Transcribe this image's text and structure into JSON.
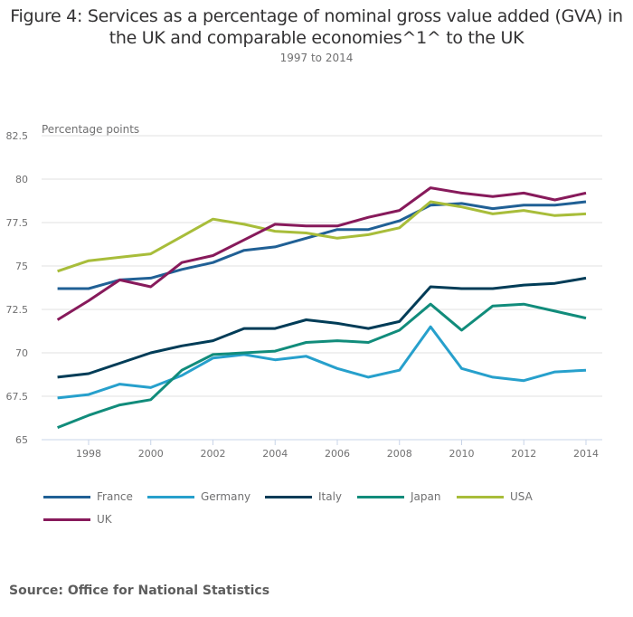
{
  "chart_data": {
    "type": "line",
    "title": "Figure 4: Services as a percentage of nominal gross value added (GVA) in the UK and comparable economies^1^ to the UK",
    "subtitle": "1997 to 2014",
    "xlabel": "",
    "ylabel": "Percentage points",
    "x": [
      1997,
      1998,
      1999,
      2000,
      2001,
      2002,
      2003,
      2004,
      2005,
      2006,
      2007,
      2008,
      2009,
      2010,
      2011,
      2012,
      2013,
      2014
    ],
    "xticks": [
      1998,
      2000,
      2002,
      2004,
      2006,
      2008,
      2010,
      2012,
      2014
    ],
    "xtick_labels": [
      "1998",
      "2000",
      "2002",
      "2004",
      "2006",
      "2008",
      "2010",
      "2012",
      "2014"
    ],
    "xlim": [
      1997,
      2014
    ],
    "ylim": [
      65,
      82.5
    ],
    "yticks": [
      65,
      67.5,
      70,
      72.5,
      75,
      77.5,
      80,
      82.5
    ],
    "ytick_labels": [
      "65",
      "67.5",
      "70",
      "72.5",
      "75",
      "77.5",
      "80",
      "82.5"
    ],
    "grid": true,
    "legend_position": "bottom-left",
    "series": [
      {
        "name": "France",
        "color": "#206095",
        "values": [
          73.7,
          73.7,
          74.2,
          74.3,
          74.8,
          75.2,
          75.9,
          76.1,
          76.6,
          77.1,
          77.1,
          77.6,
          78.5,
          78.6,
          78.3,
          78.5,
          78.5,
          78.7
        ]
      },
      {
        "name": "Germany",
        "color": "#27a0cc",
        "values": [
          67.4,
          67.6,
          68.2,
          68.0,
          68.7,
          69.7,
          69.9,
          69.6,
          69.8,
          69.1,
          68.6,
          69.0,
          71.5,
          69.1,
          68.6,
          68.4,
          68.9,
          69.0
        ]
      },
      {
        "name": "Italy",
        "color": "#003c57",
        "values": [
          68.6,
          68.8,
          69.4,
          70.0,
          70.4,
          70.7,
          71.4,
          71.4,
          71.9,
          71.7,
          71.4,
          71.8,
          73.8,
          73.7,
          73.7,
          73.9,
          74.0,
          74.3
        ]
      },
      {
        "name": "Japan",
        "color": "#118c7b",
        "values": [
          65.7,
          66.4,
          67.0,
          67.3,
          69.0,
          69.9,
          70.0,
          70.1,
          70.6,
          70.7,
          70.6,
          71.3,
          72.8,
          71.3,
          72.7,
          72.8,
          72.4,
          72.0
        ]
      },
      {
        "name": "USA",
        "color": "#a8bd3a",
        "values": [
          74.7,
          75.3,
          75.5,
          75.7,
          76.7,
          77.7,
          77.4,
          77.0,
          76.9,
          76.6,
          76.8,
          77.2,
          78.7,
          78.4,
          78.0,
          78.2,
          77.9,
          78.0
        ]
      },
      {
        "name": "UK",
        "color": "#871a5b",
        "values": [
          71.9,
          73.0,
          74.2,
          73.8,
          75.2,
          75.6,
          76.5,
          77.4,
          77.3,
          77.3,
          77.8,
          78.2,
          79.5,
          79.2,
          79.0,
          79.2,
          78.8,
          79.2
        ]
      }
    ]
  },
  "source": "Source: Office for National Statistics"
}
